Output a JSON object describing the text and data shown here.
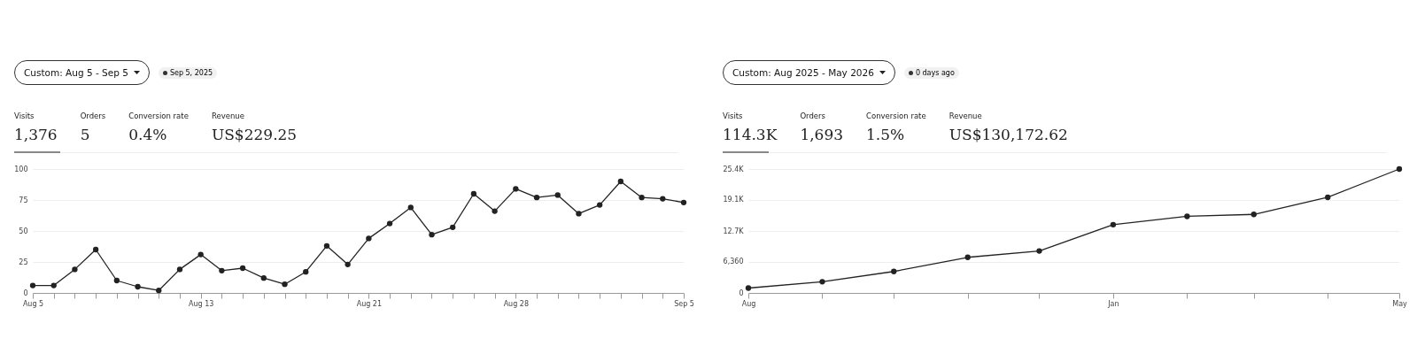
{
  "chart_data": [
    {
      "type": "line",
      "title": "Custom: Aug 5 - Sep 5",
      "subtitle": "Sep 5, 2025",
      "annotations": [
        "Visits",
        "1,376",
        "Orders",
        "5",
        "Conversion rate",
        "0.4%",
        "Revenue",
        "US$229.25"
      ],
      "x": [
        "2025-08-05",
        "2025-08-06",
        "2025-08-07",
        "2025-08-08",
        "2025-08-09",
        "2025-08-10",
        "2025-08-11",
        "2025-08-12",
        "2025-08-13",
        "2025-08-14",
        "2025-08-15",
        "2025-08-16",
        "2025-08-17",
        "2025-08-18",
        "2025-08-19",
        "2025-08-20",
        "2025-08-21",
        "2025-08-22",
        "2025-08-23",
        "2025-08-24",
        "2025-08-25",
        "2025-08-26",
        "2025-08-27",
        "2025-08-28",
        "2025-08-29",
        "2025-08-30",
        "2025-08-31",
        "2025-09-01",
        "2025-09-02",
        "2025-09-03",
        "2025-09-04",
        "2025-09-05"
      ],
      "series": [
        {
          "color": "#222222",
          "values": [
            6,
            6,
            19,
            35,
            10,
            5,
            2,
            19,
            31,
            18,
            20,
            12,
            7,
            17,
            38,
            23,
            44,
            56,
            69,
            47,
            53,
            80,
            66,
            84,
            77,
            79,
            64,
            71,
            90,
            77,
            76,
            73
          ]
        }
      ],
      "xlim": [
        "2025-08-05",
        "2025-09-05"
      ],
      "xticks": [
        {
          "value": "2025-08-05",
          "label": "Aug 5"
        },
        {
          "value": "2025-08-06",
          "label": null
        },
        {
          "value": "2025-08-07",
          "label": null
        },
        {
          "value": "2025-08-08",
          "label": null
        },
        {
          "value": "2025-08-09",
          "label": null
        },
        {
          "value": "2025-08-10",
          "label": null
        },
        {
          "value": "2025-08-11",
          "label": null
        },
        {
          "value": "2025-08-12",
          "label": null
        },
        {
          "value": "2025-08-13",
          "label": "Aug 13"
        },
        {
          "value": "2025-08-14",
          "label": null
        },
        {
          "value": "2025-08-15",
          "label": null
        },
        {
          "value": "2025-08-16",
          "label": null
        },
        {
          "value": "2025-08-17",
          "label": null
        },
        {
          "value": "2025-08-18",
          "label": null
        },
        {
          "value": "2025-08-19",
          "label": null
        },
        {
          "value": "2025-08-20",
          "label": null
        },
        {
          "value": "2025-08-21",
          "label": "Aug 21"
        },
        {
          "value": "2025-08-22",
          "label": null
        },
        {
          "value": "2025-08-23",
          "label": null
        },
        {
          "value": "2025-08-24",
          "label": null
        },
        {
          "value": "2025-08-25",
          "label": null
        },
        {
          "value": "2025-08-26",
          "label": null
        },
        {
          "value": "2025-08-27",
          "label": null
        },
        {
          "value": "2025-08-28",
          "label": "Aug 28"
        },
        {
          "value": "2025-08-29",
          "label": null
        },
        {
          "value": "2025-08-30",
          "label": null
        },
        {
          "value": "2025-08-31",
          "label": null
        },
        {
          "value": "2025-09-01",
          "label": null
        },
        {
          "value": "2025-09-02",
          "label": null
        },
        {
          "value": "2025-09-03",
          "label": null
        },
        {
          "value": "2025-09-04",
          "label": null
        },
        {
          "value": "2025-09-05",
          "label": "Sep 5"
        }
      ],
      "ylim": [
        0,
        100
      ],
      "yticks": [
        0,
        25,
        50,
        75,
        100
      ],
      "grid": "y",
      "marker": "circle"
    },
    {
      "type": "line",
      "title": "Custom: Aug 2025 - May 2026",
      "subtitle": "0 days ago",
      "annotations": [
        "Visits",
        "114.3K",
        "Orders",
        "1,693",
        "Conversion rate",
        "1.5%",
        "Revenue",
        "US$130,172.62"
      ],
      "x": [
        "2025-08",
        "2025-09",
        "2025-10",
        "2025-11",
        "2025-12",
        "2026-01",
        "2026-02",
        "2026-03",
        "2026-04",
        "2026-05"
      ],
      "series": [
        {
          "color": "#222222",
          "values": [
            1000,
            2300,
            4400,
            7300,
            8600,
            14000,
            15700,
            16100,
            19600,
            25400
          ]
        }
      ],
      "xlim": [
        "2025-08",
        "2026-05"
      ],
      "xticks": [
        {
          "value": "2025-08",
          "label": "Aug"
        },
        {
          "value": "2025-09",
          "label": null
        },
        {
          "value": "2025-10",
          "label": null
        },
        {
          "value": "2025-11",
          "label": null
        },
        {
          "value": "2025-12",
          "label": null
        },
        {
          "value": "2026-01",
          "label": "Jan"
        },
        {
          "value": "2026-02",
          "label": null
        },
        {
          "value": "2026-03",
          "label": null
        },
        {
          "value": "2026-04",
          "label": null
        },
        {
          "value": "2026-05",
          "label": "May"
        }
      ],
      "ylim": [
        0,
        25400
      ],
      "yticks": [
        0,
        {
          "value": 6360,
          "label": "6,360"
        },
        {
          "value": 12700,
          "label": "12.7K"
        },
        {
          "value": 19100,
          "label": "19.1K"
        },
        {
          "value": 25400,
          "label": "25.4K"
        }
      ],
      "grid": "y",
      "marker": "circle"
    }
  ]
}
